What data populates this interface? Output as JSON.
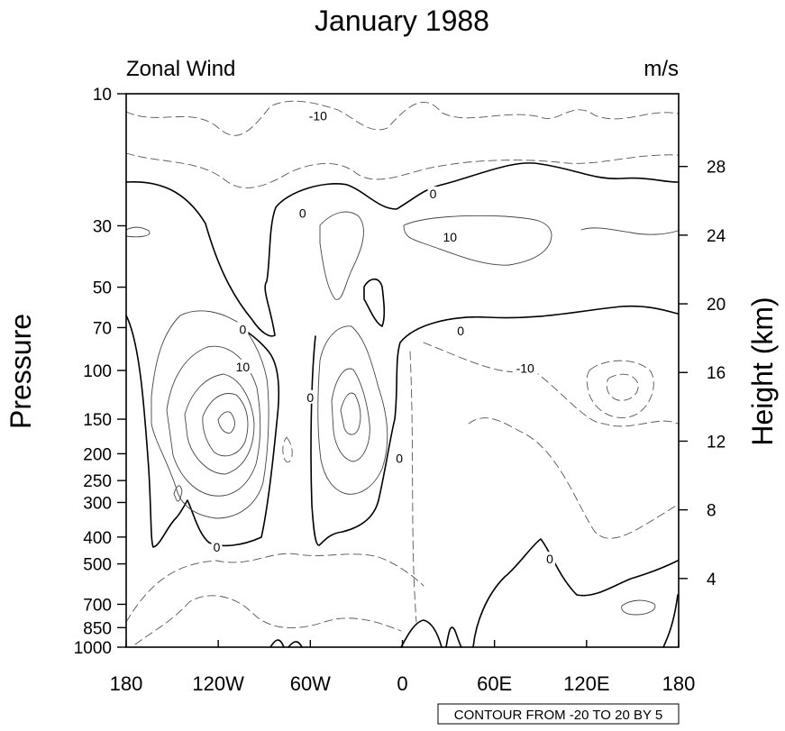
{
  "chart_data": {
    "type": "contour",
    "title": "January 1988",
    "left_string": "Zonal Wind",
    "right_string": "m/s",
    "ylabel": "Pressure",
    "ylabel_right": "Height (km)",
    "x_ticks": [
      {
        "value": -180,
        "label": "180"
      },
      {
        "value": -120,
        "label": "120W"
      },
      {
        "value": -60,
        "label": "60W"
      },
      {
        "value": 0,
        "label": "0"
      },
      {
        "value": 60,
        "label": "60E"
      },
      {
        "value": 120,
        "label": "120E"
      },
      {
        "value": 180,
        "label": "180"
      }
    ],
    "y_ticks": [
      {
        "value": 10,
        "label": "10"
      },
      {
        "value": 30,
        "label": "30"
      },
      {
        "value": 50,
        "label": "50"
      },
      {
        "value": 70,
        "label": "70"
      },
      {
        "value": 100,
        "label": "100"
      },
      {
        "value": 150,
        "label": "150"
      },
      {
        "value": 200,
        "label": "200"
      },
      {
        "value": 250,
        "label": "250"
      },
      {
        "value": 300,
        "label": "300"
      },
      {
        "value": 400,
        "label": "400"
      },
      {
        "value": 500,
        "label": "500"
      },
      {
        "value": 700,
        "label": "700"
      },
      {
        "value": 850,
        "label": "850"
      },
      {
        "value": 1000,
        "label": "1000"
      }
    ],
    "height_ticks": [
      {
        "value": 28,
        "label": "28"
      },
      {
        "value": 24,
        "label": "24"
      },
      {
        "value": 20,
        "label": "20"
      },
      {
        "value": 16,
        "label": "16"
      },
      {
        "value": 12,
        "label": "12"
      },
      {
        "value": 8,
        "label": "8"
      },
      {
        "value": 4,
        "label": "4"
      }
    ],
    "xlim": [
      -180,
      180
    ],
    "ylim": [
      1000,
      10
    ],
    "y_scale": "log",
    "contour_info": "CONTOUR FROM -20 TO 20 BY 5",
    "contour_levels": {
      "min": -20,
      "max": 20,
      "interval": 5
    },
    "contour_labels": [
      {
        "text": "-10",
        "lon": -55,
        "p": 12
      },
      {
        "text": "0",
        "lon": 20,
        "p": 23
      },
      {
        "text": "0",
        "lon": -65,
        "p": 27
      },
      {
        "text": "10",
        "lon": 31,
        "p": 33
      },
      {
        "text": "0",
        "lon": 38,
        "p": 72
      },
      {
        "text": "0",
        "lon": -104,
        "p": 71
      },
      {
        "text": "10",
        "lon": -104,
        "p": 97
      },
      {
        "text": "-10",
        "lon": 80,
        "p": 98
      },
      {
        "text": "0",
        "lon": -60,
        "p": 125
      },
      {
        "text": "0",
        "lon": -2,
        "p": 208
      },
      {
        "text": "0",
        "lon": -121,
        "p": 435
      },
      {
        "text": "0",
        "lon": 96,
        "p": 480
      }
    ]
  }
}
